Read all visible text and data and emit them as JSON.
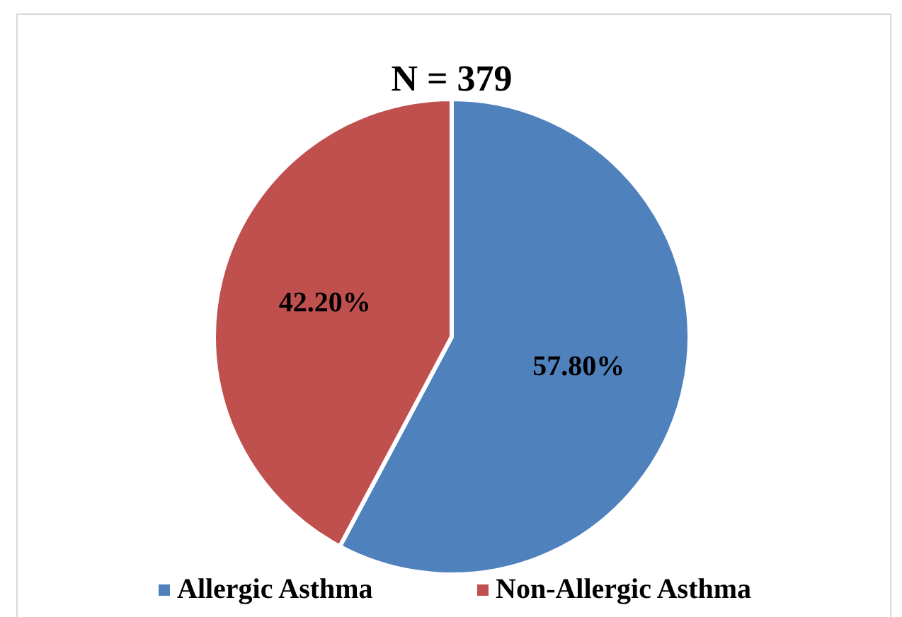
{
  "chart_data": {
    "type": "pie",
    "title": "N = 379",
    "categories": [
      "Allergic Asthma",
      "Non-Allergic Asthma"
    ],
    "values": [
      57.8,
      42.2
    ],
    "colors": [
      "#4f81bd",
      "#c0504d"
    ],
    "value_labels": [
      "57.80%",
      "42.20%"
    ],
    "legend": "bottom"
  }
}
